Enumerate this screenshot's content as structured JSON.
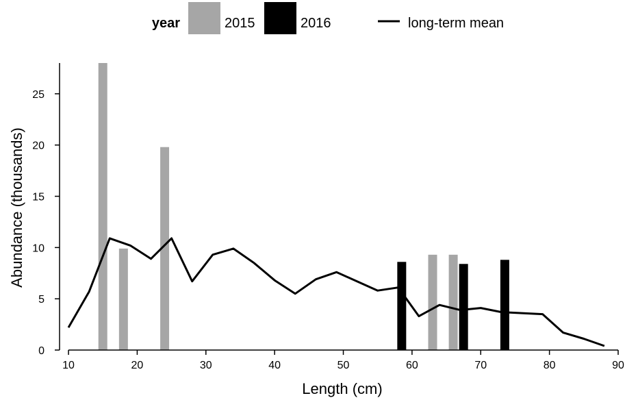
{
  "chart_data": {
    "type": "bar",
    "xlabel": "Length (cm)",
    "ylabel": "Abundance (thousands)",
    "xlim": [
      8.7,
      90
    ],
    "ylim": [
      0,
      28
    ],
    "xticks": [
      10,
      20,
      30,
      40,
      50,
      60,
      70,
      80,
      90
    ],
    "yticks": [
      0,
      5,
      10,
      15,
      20,
      25
    ],
    "legend": {
      "title": "year",
      "position": "top",
      "entries": [
        {
          "label": "2015",
          "color": "#a6a6a6",
          "kind": "bar"
        },
        {
          "label": "2016",
          "color": "#000000",
          "kind": "bar"
        },
        {
          "label": "long-term mean",
          "color": "#000000",
          "kind": "line"
        }
      ]
    },
    "bar_series": [
      {
        "name": "2015",
        "color": "#a6a6a6",
        "x": [
          15,
          18,
          24,
          63,
          66
        ],
        "values": [
          28,
          9.9,
          19.8,
          9.3,
          9.3
        ]
      },
      {
        "name": "2016",
        "color": "#000000",
        "x": [
          58.5,
          67.5,
          73.5
        ],
        "values": [
          8.6,
          8.4,
          8.8
        ]
      }
    ],
    "line_series": {
      "name": "long-term mean",
      "color": "#000000",
      "x": [
        10,
        13,
        16,
        19,
        22,
        25,
        28,
        31,
        34,
        37,
        40,
        43,
        46,
        49,
        52,
        55,
        58,
        61,
        64,
        67,
        70,
        73,
        76,
        79,
        82,
        85,
        88
      ],
      "y": [
        2.2,
        5.7,
        10.9,
        10.2,
        8.9,
        10.9,
        6.7,
        9.3,
        9.9,
        8.5,
        6.8,
        5.5,
        6.9,
        7.6,
        6.7,
        5.8,
        6.1,
        3.3,
        4.4,
        3.9,
        4.1,
        3.7,
        3.6,
        3.5,
        1.7,
        1.1,
        0.4
      ]
    }
  }
}
